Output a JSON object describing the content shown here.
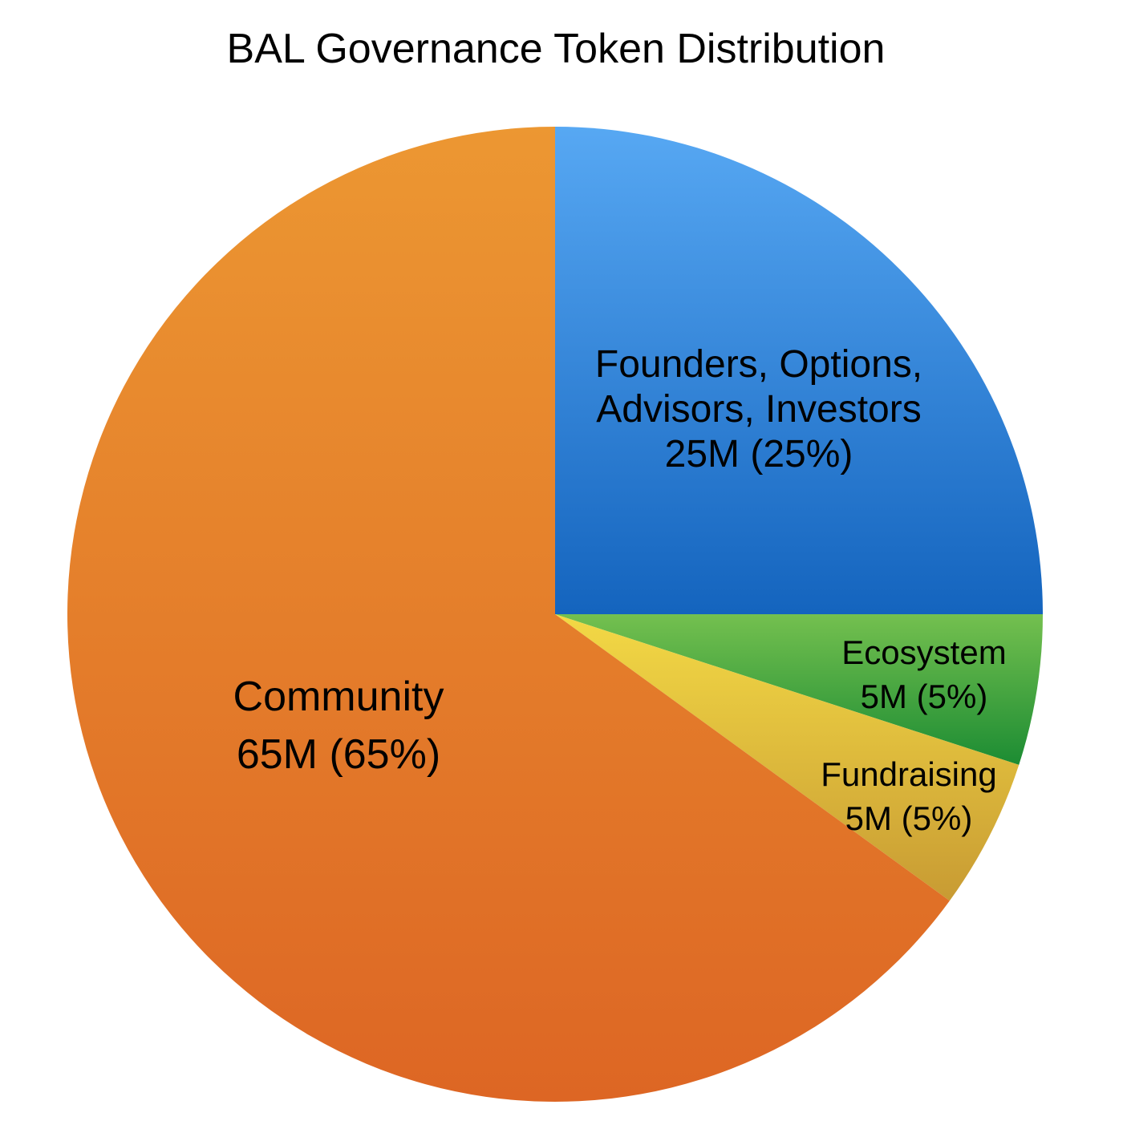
{
  "chart_data": {
    "type": "pie",
    "title": "BAL Governance Token Distribution",
    "start_angle_deg": 0,
    "direction": "clockwise",
    "slices": [
      {
        "name": "Founders, Options, Advisors, Investors",
        "label_lines": [
          "Founders, Options,",
          "Advisors, Investors",
          "25M (25%)"
        ],
        "value": 25,
        "value_label": "25M",
        "percent": 25,
        "color_top": "#57a8f3",
        "color_bottom": "#1464be"
      },
      {
        "name": "Ecosystem",
        "label_lines": [
          "Ecosystem",
          "5M (5%)"
        ],
        "value": 5,
        "value_label": "5M",
        "percent": 5,
        "color_top": "#74c04f",
        "color_bottom": "#1c8c33"
      },
      {
        "name": "Fundraising",
        "label_lines": [
          "Fundraising",
          "5M (5%)"
        ],
        "value": 5,
        "value_label": "5M",
        "percent": 5,
        "color_top": "#f3d945",
        "color_bottom": "#c89b33"
      },
      {
        "name": "Community",
        "label_lines": [
          "Community",
          "65M (65%)"
        ],
        "value": 65,
        "value_label": "65M",
        "percent": 65,
        "color_top": "#ec9732",
        "color_bottom": "#dd6624"
      }
    ]
  }
}
